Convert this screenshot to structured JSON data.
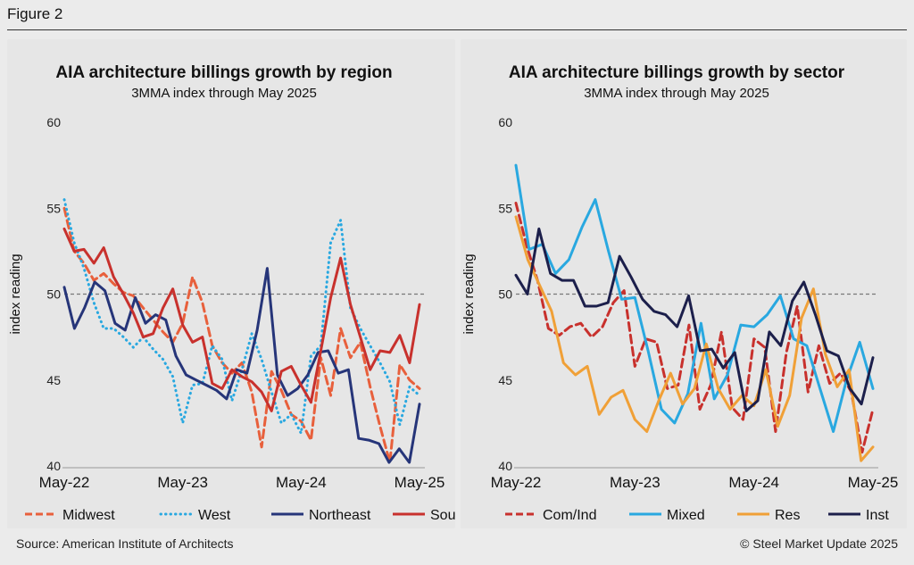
{
  "figure_label": "Figure 2",
  "footer": {
    "source": "Source: American Institute of Architects",
    "copyright": "© Steel Market Update 2025"
  },
  "chart_data": [
    {
      "type": "line",
      "title": "AIA architecture billings growth by region",
      "subtitle": "3MMA index through May 2025",
      "ylabel": "index reading",
      "ylim": [
        40,
        60
      ],
      "yticks": [
        40,
        45,
        50,
        55,
        60
      ],
      "x_ticks": [
        "May-22",
        "May-23",
        "May-24",
        "May-25"
      ],
      "x_tick_index": [
        0,
        12,
        24,
        36
      ],
      "reference_line": 50,
      "legend_position": "bottom",
      "series": [
        {
          "name": "Midwest",
          "color": "#e8603c",
          "dash": "dashed",
          "values": [
            55.0,
            52.5,
            51.8,
            50.8,
            51.2,
            50.6,
            50.1,
            49.9,
            49.2,
            48.5,
            47.8,
            47.2,
            48.3,
            51.0,
            49.5,
            47.0,
            46.0,
            45.4,
            46.0,
            44.3,
            41.1,
            45.5,
            44.4,
            43.0,
            42.6,
            41.5,
            46.3,
            44.1,
            48.0,
            46.3,
            47.2,
            44.6,
            42.3,
            40.2,
            45.9,
            45.0,
            44.5
          ]
        },
        {
          "name": "West",
          "color": "#29a8e0",
          "dash": "dotted",
          "values": [
            55.5,
            53.0,
            51.5,
            49.5,
            48.0,
            48.0,
            47.5,
            46.9,
            47.5,
            46.8,
            46.2,
            45.2,
            42.5,
            44.7,
            44.8,
            47.0,
            46.2,
            43.8,
            45.6,
            47.7,
            46.2,
            44.3,
            42.5,
            43.0,
            41.9,
            46.4,
            47.0,
            53.0,
            54.3,
            49.2,
            48.0,
            47.0,
            46.0,
            44.9,
            42.4,
            44.6,
            44.1
          ]
        },
        {
          "name": "Northeast",
          "color": "#263579",
          "dash": "solid",
          "values": [
            50.4,
            48.0,
            49.2,
            50.7,
            50.2,
            48.3,
            47.9,
            49.8,
            48.3,
            48.8,
            48.5,
            46.4,
            45.3,
            45.0,
            44.7,
            44.4,
            43.9,
            45.6,
            45.4,
            47.9,
            51.5,
            45.3,
            44.1,
            44.5,
            45.3,
            46.6,
            46.7,
            45.4,
            45.6,
            41.6,
            41.5,
            41.3,
            40.2,
            41.0,
            40.2,
            43.6
          ]
        },
        {
          "name": "South",
          "color": "#c8312d",
          "dash": "solid",
          "values": [
            53.8,
            52.5,
            52.6,
            51.8,
            52.7,
            51.0,
            50.0,
            48.9,
            47.5,
            47.7,
            49.2,
            50.3,
            48.2,
            47.2,
            47.5,
            44.8,
            44.5,
            45.6,
            45.2,
            44.9,
            44.3,
            43.2,
            45.5,
            45.8,
            44.7,
            43.7,
            46.7,
            49.8,
            52.1,
            49.4,
            47.5,
            45.6,
            46.7,
            46.6,
            47.6,
            46.0,
            49.4
          ]
        }
      ]
    },
    {
      "type": "line",
      "title": "AIA architecture billings growth by sector",
      "subtitle": "3MMA index through May 2025",
      "ylabel": "index reading",
      "ylim": [
        40,
        60
      ],
      "yticks": [
        40,
        45,
        50,
        55,
        60
      ],
      "x_ticks": [
        "May-22",
        "May-23",
        "May-24",
        "May-25"
      ],
      "x_tick_index": [
        0,
        12,
        24,
        36
      ],
      "reference_line": 50,
      "legend_position": "bottom",
      "series": [
        {
          "name": "Com/Ind",
          "color": "#c8312d",
          "dash": "dashed",
          "values": [
            55.3,
            52.8,
            50.8,
            48.0,
            47.6,
            48.1,
            48.3,
            47.5,
            48.1,
            49.5,
            50.2,
            45.8,
            47.4,
            47.2,
            44.5,
            44.7,
            48.2,
            43.3,
            44.7,
            47.8,
            43.4,
            42.7,
            47.4,
            46.9,
            42.0,
            46.6,
            49.3,
            44.3,
            47.0,
            44.8,
            45.4,
            44.3,
            40.8,
            43.3
          ]
        },
        {
          "name": "Mixed",
          "color": "#29a8e0",
          "dash": "solid",
          "values": [
            57.5,
            52.6,
            52.9,
            51.2,
            52.0,
            53.9,
            55.5,
            52.5,
            49.7,
            49.8,
            46.7,
            43.3,
            42.5,
            44.2,
            48.3,
            43.9,
            45.3,
            48.2,
            48.1,
            48.8,
            49.9,
            47.4,
            47.0,
            44.5,
            42.0,
            45.0,
            47.2,
            44.5
          ]
        },
        {
          "name": "Res",
          "color": "#f0a037",
          "dash": "solid",
          "values": [
            54.5,
            52.0,
            50.5,
            49.0,
            46.0,
            45.3,
            45.8,
            43.0,
            44.0,
            44.4,
            42.7,
            42.0,
            43.8,
            45.4,
            43.6,
            44.5,
            47.1,
            44.5,
            43.3,
            44.1,
            43.5,
            45.6,
            42.3,
            44.1,
            48.6,
            50.3,
            46.5,
            44.6,
            45.6,
            40.3,
            41.1
          ]
        },
        {
          "name": "Inst",
          "color": "#1c1f4b",
          "dash": "solid",
          "values": [
            51.1,
            50.0,
            53.8,
            51.2,
            50.8,
            50.8,
            49.3,
            49.3,
            49.5,
            52.2,
            51.0,
            49.7,
            49.0,
            48.8,
            48.1,
            49.9,
            46.7,
            46.8,
            45.7,
            46.6,
            43.2,
            43.8,
            47.8,
            47.0,
            49.6,
            50.7,
            48.8,
            46.7,
            46.4,
            44.5,
            43.6,
            46.3
          ]
        }
      ]
    }
  ]
}
